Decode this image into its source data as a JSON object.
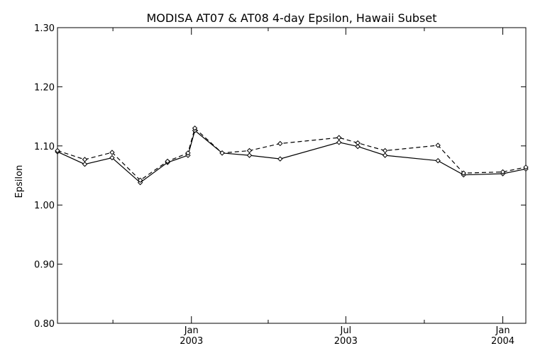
{
  "chart_data": {
    "type": "line",
    "title": "MODISA AT07 & AT08 4-day Epsilon, Hawaii Subset",
    "xlabel": "",
    "ylabel": "Epsilon",
    "ylim": [
      0.8,
      1.3
    ],
    "y_ticks": [
      "0.80",
      "0.90",
      "1.00",
      "1.10",
      "1.20",
      "1.30"
    ],
    "xlim": [
      "2002-07-28",
      "2004-01-28"
    ],
    "x_major_ticks": [
      {
        "date": "2003-01-01",
        "month": "Jan",
        "year": "2003"
      },
      {
        "date": "2003-07-01",
        "month": "Jul",
        "year": "2003"
      },
      {
        "date": "2004-01-01",
        "month": "Jan",
        "year": "2004"
      }
    ],
    "x_minor_ticks": [
      "2002-10-01",
      "2003-04-01",
      "2003-10-01"
    ],
    "grid": false,
    "series": [
      {
        "line_style": "solid",
        "marker": "diamond",
        "points": [
          {
            "x": "2002-07-28",
            "y": 1.09
          },
          {
            "x": "2002-08-29",
            "y": 1.069
          },
          {
            "x": "2002-09-30",
            "y": 1.08
          },
          {
            "x": "2002-11-02",
            "y": 1.038
          },
          {
            "x": "2002-12-04",
            "y": 1.072
          },
          {
            "x": "2002-12-28",
            "y": 1.084
          },
          {
            "x": "2003-01-05",
            "y": 1.126
          },
          {
            "x": "2003-02-06",
            "y": 1.088
          },
          {
            "x": "2003-03-10",
            "y": 1.084
          },
          {
            "x": "2003-04-15",
            "y": 1.078
          },
          {
            "x": "2003-06-23",
            "y": 1.106
          },
          {
            "x": "2003-07-15",
            "y": 1.099
          },
          {
            "x": "2003-08-16",
            "y": 1.084
          },
          {
            "x": "2003-10-17",
            "y": 1.075
          },
          {
            "x": "2003-11-16",
            "y": 1.051
          },
          {
            "x": "2004-01-01",
            "y": 1.053
          },
          {
            "x": "2004-01-28",
            "y": 1.061
          }
        ]
      },
      {
        "line_style": "dashed",
        "marker": "diamond",
        "points": [
          {
            "x": "2002-07-28",
            "y": 1.092
          },
          {
            "x": "2002-08-29",
            "y": 1.077
          },
          {
            "x": "2002-09-30",
            "y": 1.089
          },
          {
            "x": "2002-11-02",
            "y": 1.042
          },
          {
            "x": "2002-12-04",
            "y": 1.074
          },
          {
            "x": "2002-12-28",
            "y": 1.088
          },
          {
            "x": "2003-01-05",
            "y": 1.13
          },
          {
            "x": "2003-02-06",
            "y": 1.088
          },
          {
            "x": "2003-03-10",
            "y": 1.092
          },
          {
            "x": "2003-04-15",
            "y": 1.104
          },
          {
            "x": "2003-06-23",
            "y": 1.114
          },
          {
            "x": "2003-07-15",
            "y": 1.105
          },
          {
            "x": "2003-08-16",
            "y": 1.092
          },
          {
            "x": "2003-10-17",
            "y": 1.101
          },
          {
            "x": "2003-11-16",
            "y": 1.054
          },
          {
            "x": "2004-01-01",
            "y": 1.056
          },
          {
            "x": "2004-01-28",
            "y": 1.064
          }
        ]
      }
    ]
  }
}
